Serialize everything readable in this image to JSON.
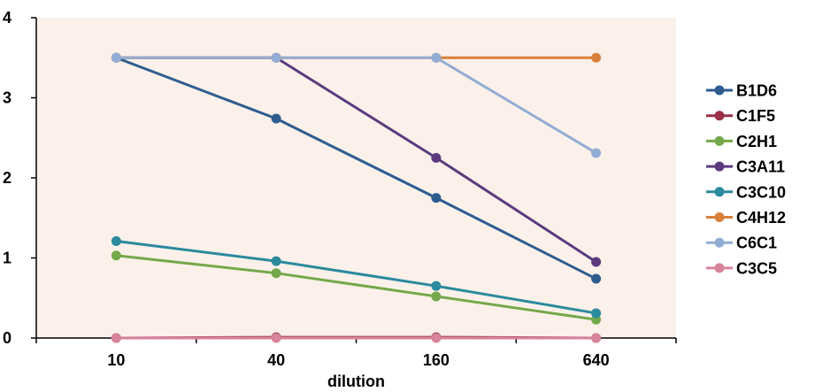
{
  "chart_data": {
    "type": "line",
    "title": "",
    "xlabel": "dilution",
    "ylabel": "",
    "categories": [
      "10",
      "40",
      "160",
      "640"
    ],
    "ylim": [
      0,
      4
    ],
    "yticks": [
      "0",
      "1",
      "2",
      "3",
      "4"
    ],
    "legend_position": "right",
    "plot_background": "#fbf1ea",
    "series": [
      {
        "name": "B1D6",
        "color": "#2e5c8f",
        "values": [
          3.5,
          2.74,
          1.75,
          0.74
        ]
      },
      {
        "name": "C1F5",
        "color": "#9b3048",
        "values": [
          0.0,
          0.01,
          0.01,
          0.0
        ]
      },
      {
        "name": "C2H1",
        "color": "#74a84a",
        "values": [
          1.03,
          0.81,
          0.52,
          0.23
        ]
      },
      {
        "name": "C3A11",
        "color": "#5b3a7e",
        "values": [
          3.5,
          3.5,
          2.25,
          0.95
        ]
      },
      {
        "name": "C3C10",
        "color": "#2b8a9d",
        "values": [
          1.21,
          0.96,
          0.65,
          0.31
        ]
      },
      {
        "name": "C4H12",
        "color": "#d9803a",
        "values": [
          3.5,
          3.5,
          3.5,
          3.5
        ]
      },
      {
        "name": "C6C1",
        "color": "#92add4",
        "values": [
          3.5,
          3.5,
          3.5,
          2.31
        ]
      },
      {
        "name": "C3C5",
        "color": "#d7839c",
        "values": [
          0.0,
          0.0,
          0.0,
          0.0
        ]
      }
    ]
  }
}
